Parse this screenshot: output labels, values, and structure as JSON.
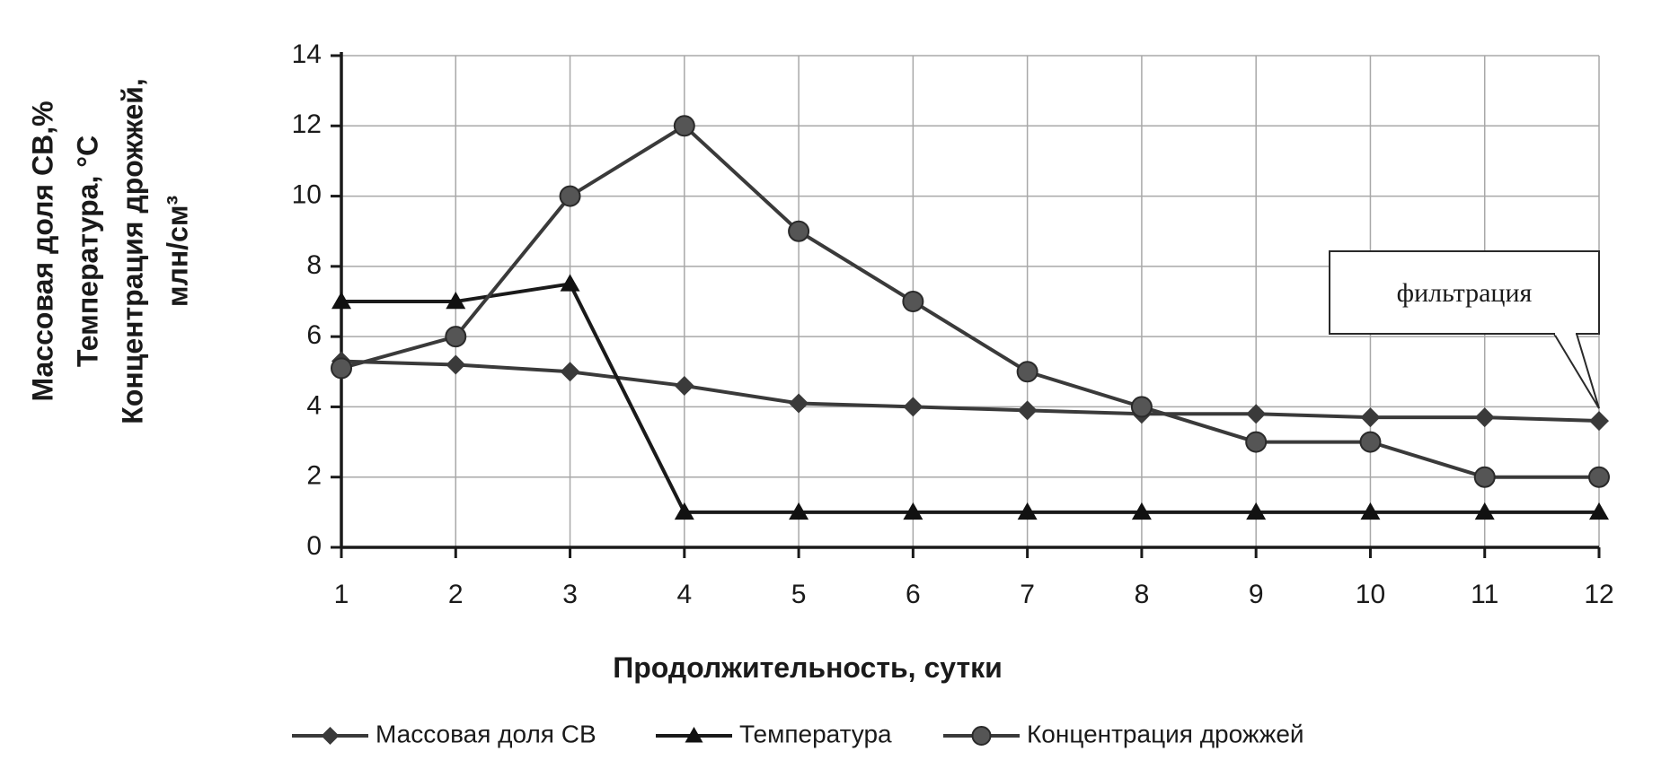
{
  "chart_data": {
    "type": "line",
    "xlabel": "Продолжительность, сутки",
    "ylabel_lines": [
      "Массовая доля СВ,%",
      "Температура, °С",
      "Концентрация дрожжей,",
      "млн/см³"
    ],
    "x": [
      1,
      2,
      3,
      4,
      5,
      6,
      7,
      8,
      9,
      10,
      11,
      12
    ],
    "xlim": [
      1,
      12
    ],
    "ylim": [
      0,
      14
    ],
    "yticks": [
      0,
      2,
      4,
      6,
      8,
      10,
      12,
      14
    ],
    "grid": true,
    "legend_position": "bottom",
    "series": [
      {
        "name": "Массовая доля СВ",
        "marker": "diamond",
        "values": [
          5.3,
          5.2,
          5.0,
          4.6,
          4.1,
          4.0,
          3.9,
          3.8,
          3.8,
          3.7,
          3.7,
          3.6
        ]
      },
      {
        "name": "Температура",
        "marker": "triangle",
        "values": [
          7.0,
          7.0,
          7.5,
          1.0,
          1.0,
          1.0,
          1.0,
          1.0,
          1.0,
          1.0,
          1.0,
          1.0
        ]
      },
      {
        "name": "Концентрация дрожжей",
        "marker": "circle",
        "values": [
          5.1,
          6.0,
          10.0,
          12.0,
          9.0,
          7.0,
          5.0,
          4.0,
          3.0,
          3.0,
          2.0,
          2.0
        ]
      }
    ],
    "annotations": [
      {
        "text": "фильтрация",
        "target_x": 12,
        "target_series": "Массовая доля СВ"
      }
    ],
    "colors": {
      "line": "#3a3a3a",
      "grid": "#a8a8a8",
      "axis": "#1a1a1a"
    }
  }
}
